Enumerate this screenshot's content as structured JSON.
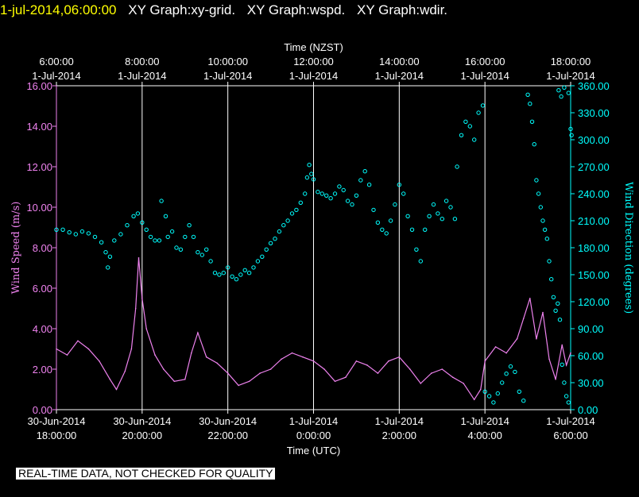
{
  "header": {
    "timestamp": "1-jul-2014,06:00:00",
    "titles": [
      "XY Graph:xy-grid.",
      "XY Graph:wspd.",
      "XY Graph:wdir."
    ]
  },
  "footer": {
    "note": "REAL-TIME DATA, NOT CHECKED FOR QUALITY"
  },
  "chart_data": {
    "type": "scatter",
    "title_top": "Time (NZST)",
    "title_bottom": "Time (UTC)",
    "ylabel_left": "Wind Speed (m/s)",
    "ylabel_right": "Wind Direction (degrees)",
    "x_range_hours_utc": [
      18,
      30
    ],
    "gridlines_x_hours": [
      20,
      22,
      24,
      26,
      28
    ],
    "top_ticks": [
      {
        "h": 18,
        "l1": "6:00:00",
        "l2": "1-Jul-2014"
      },
      {
        "h": 20,
        "l1": "8:00:00",
        "l2": "1-Jul-2014"
      },
      {
        "h": 22,
        "l1": "10:00:00",
        "l2": "1-Jul-2014"
      },
      {
        "h": 24,
        "l1": "12:00:00",
        "l2": "1-Jul-2014"
      },
      {
        "h": 26,
        "l1": "14:00:00",
        "l2": "1-Jul-2014"
      },
      {
        "h": 28,
        "l1": "16:00:00",
        "l2": "1-Jul-2014"
      },
      {
        "h": 30,
        "l1": "18:00:00",
        "l2": "1-Jul-2014"
      }
    ],
    "bottom_ticks": [
      {
        "h": 18,
        "l1": "30-Jun-2014",
        "l2": "18:00:00"
      },
      {
        "h": 20,
        "l1": "30-Jun-2014",
        "l2": "20:00:00"
      },
      {
        "h": 22,
        "l1": "30-Jun-2014",
        "l2": "22:00:00"
      },
      {
        "h": 24,
        "l1": "1-Jul-2014",
        "l2": "0:00:00"
      },
      {
        "h": 26,
        "l1": "1-Jul-2014",
        "l2": "2:00:00"
      },
      {
        "h": 28,
        "l1": "1-Jul-2014",
        "l2": "4:00:00"
      },
      {
        "h": 30,
        "l1": "1-Jul-2014",
        "l2": "6:00:00"
      }
    ],
    "left_axis": {
      "range": [
        0,
        16
      ],
      "ticks": [
        "0.00",
        "2.00",
        "4.00",
        "6.00",
        "8.00",
        "10.00",
        "12.00",
        "14.00",
        "16.00"
      ]
    },
    "right_axis": {
      "range": [
        0,
        360
      ],
      "ticks": [
        "0.00",
        "30.00",
        "60.00",
        "90.00",
        "120.00",
        "150.00",
        "180.00",
        "210.00",
        "240.00",
        "270.00",
        "300.00",
        "330.00",
        "360.00"
      ]
    },
    "series": [
      {
        "name": "Wind Speed",
        "kind": "line",
        "axis": "left",
        "color": "#ee82ee",
        "points": [
          [
            18.0,
            3.0
          ],
          [
            18.25,
            2.7
          ],
          [
            18.5,
            3.4
          ],
          [
            18.75,
            3.0
          ],
          [
            19.0,
            2.4
          ],
          [
            19.25,
            1.5
          ],
          [
            19.4,
            1.0
          ],
          [
            19.6,
            1.9
          ],
          [
            19.75,
            3.0
          ],
          [
            19.85,
            5.0
          ],
          [
            19.92,
            7.5
          ],
          [
            20.0,
            5.5
          ],
          [
            20.1,
            4.0
          ],
          [
            20.3,
            2.7
          ],
          [
            20.5,
            2.0
          ],
          [
            20.75,
            1.4
          ],
          [
            21.0,
            1.5
          ],
          [
            21.15,
            2.8
          ],
          [
            21.3,
            3.8
          ],
          [
            21.5,
            2.6
          ],
          [
            21.75,
            2.3
          ],
          [
            22.0,
            1.8
          ],
          [
            22.25,
            1.2
          ],
          [
            22.5,
            1.4
          ],
          [
            22.75,
            1.8
          ],
          [
            23.0,
            2.0
          ],
          [
            23.25,
            2.5
          ],
          [
            23.5,
            2.8
          ],
          [
            23.75,
            2.6
          ],
          [
            24.0,
            2.4
          ],
          [
            24.25,
            2.0
          ],
          [
            24.5,
            1.4
          ],
          [
            24.75,
            1.6
          ],
          [
            25.0,
            2.4
          ],
          [
            25.25,
            2.2
          ],
          [
            25.5,
            1.8
          ],
          [
            25.75,
            2.4
          ],
          [
            26.0,
            2.6
          ],
          [
            26.25,
            2.0
          ],
          [
            26.5,
            1.3
          ],
          [
            26.75,
            1.8
          ],
          [
            27.0,
            2.0
          ],
          [
            27.25,
            1.6
          ],
          [
            27.5,
            1.3
          ],
          [
            27.75,
            0.5
          ],
          [
            27.9,
            1.0
          ],
          [
            28.0,
            2.4
          ],
          [
            28.25,
            3.1
          ],
          [
            28.5,
            2.8
          ],
          [
            28.75,
            3.5
          ],
          [
            28.9,
            4.5
          ],
          [
            29.05,
            5.5
          ],
          [
            29.2,
            3.5
          ],
          [
            29.35,
            4.8
          ],
          [
            29.5,
            2.5
          ],
          [
            29.65,
            1.5
          ],
          [
            29.8,
            3.2
          ],
          [
            29.9,
            2.2
          ],
          [
            30.0,
            2.8
          ]
        ]
      },
      {
        "name": "Wind Direction",
        "kind": "scatter",
        "axis": "right",
        "color": "#00ffff",
        "points": [
          [
            18.0,
            200
          ],
          [
            18.15,
            200
          ],
          [
            18.3,
            197
          ],
          [
            18.45,
            195
          ],
          [
            18.6,
            198
          ],
          [
            18.75,
            196
          ],
          [
            18.9,
            192
          ],
          [
            19.05,
            186
          ],
          [
            19.15,
            175
          ],
          [
            19.2,
            158
          ],
          [
            19.25,
            170
          ],
          [
            19.35,
            188
          ],
          [
            19.5,
            195
          ],
          [
            19.65,
            205
          ],
          [
            19.8,
            215
          ],
          [
            19.9,
            218
          ],
          [
            20.0,
            208
          ],
          [
            20.1,
            200
          ],
          [
            20.2,
            192
          ],
          [
            20.3,
            188
          ],
          [
            20.4,
            188
          ],
          [
            20.45,
            232
          ],
          [
            20.55,
            215
          ],
          [
            20.6,
            192
          ],
          [
            20.7,
            198
          ],
          [
            20.8,
            180
          ],
          [
            20.9,
            178
          ],
          [
            21.0,
            192
          ],
          [
            21.1,
            205
          ],
          [
            21.2,
            192
          ],
          [
            21.3,
            175
          ],
          [
            21.4,
            172
          ],
          [
            21.5,
            178
          ],
          [
            21.6,
            165
          ],
          [
            21.7,
            152
          ],
          [
            21.8,
            150
          ],
          [
            21.9,
            152
          ],
          [
            22.0,
            158
          ],
          [
            22.1,
            148
          ],
          [
            22.2,
            145
          ],
          [
            22.3,
            150
          ],
          [
            22.4,
            155
          ],
          [
            22.5,
            152
          ],
          [
            22.6,
            158
          ],
          [
            22.7,
            165
          ],
          [
            22.8,
            170
          ],
          [
            22.9,
            178
          ],
          [
            23.0,
            185
          ],
          [
            23.1,
            190
          ],
          [
            23.2,
            198
          ],
          [
            23.3,
            205
          ],
          [
            23.4,
            210
          ],
          [
            23.5,
            218
          ],
          [
            23.6,
            222
          ],
          [
            23.7,
            230
          ],
          [
            23.8,
            240
          ],
          [
            23.85,
            258
          ],
          [
            23.9,
            272
          ],
          [
            23.95,
            262
          ],
          [
            24.0,
            256
          ],
          [
            24.1,
            242
          ],
          [
            24.2,
            240
          ],
          [
            24.3,
            238
          ],
          [
            24.4,
            235
          ],
          [
            24.5,
            240
          ],
          [
            24.6,
            248
          ],
          [
            24.7,
            244
          ],
          [
            24.8,
            232
          ],
          [
            24.9,
            228
          ],
          [
            25.0,
            238
          ],
          [
            25.1,
            255
          ],
          [
            25.2,
            265
          ],
          [
            25.3,
            250
          ],
          [
            25.4,
            222
          ],
          [
            25.5,
            208
          ],
          [
            25.6,
            200
          ],
          [
            25.7,
            196
          ],
          [
            25.8,
            210
          ],
          [
            25.9,
            228
          ],
          [
            26.0,
            250
          ],
          [
            26.1,
            240
          ],
          [
            26.2,
            215
          ],
          [
            26.3,
            200
          ],
          [
            26.4,
            178
          ],
          [
            26.5,
            165
          ],
          [
            26.6,
            200
          ],
          [
            26.7,
            215
          ],
          [
            26.8,
            228
          ],
          [
            26.9,
            218
          ],
          [
            27.0,
            212
          ],
          [
            27.1,
            232
          ],
          [
            27.2,
            225
          ],
          [
            27.3,
            212
          ],
          [
            27.35,
            270
          ],
          [
            27.45,
            305
          ],
          [
            27.55,
            320
          ],
          [
            27.65,
            315
          ],
          [
            27.75,
            300
          ],
          [
            27.85,
            330
          ],
          [
            27.95,
            338
          ],
          [
            28.0,
            20
          ],
          [
            28.1,
            15
          ],
          [
            28.2,
            8
          ],
          [
            28.3,
            18
          ],
          [
            28.4,
            30
          ],
          [
            28.5,
            40
          ],
          [
            28.6,
            48
          ],
          [
            28.7,
            42
          ],
          [
            28.8,
            20
          ],
          [
            28.9,
            10
          ],
          [
            29.0,
            350
          ],
          [
            29.05,
            340
          ],
          [
            29.1,
            320
          ],
          [
            29.15,
            295
          ],
          [
            29.2,
            255
          ],
          [
            29.25,
            240
          ],
          [
            29.3,
            225
          ],
          [
            29.35,
            210
          ],
          [
            29.4,
            200
          ],
          [
            29.45,
            190
          ],
          [
            29.5,
            165
          ],
          [
            29.55,
            145
          ],
          [
            29.6,
            125
          ],
          [
            29.65,
            110
          ],
          [
            29.7,
            118
          ],
          [
            29.75,
            100
          ],
          [
            29.8,
            50
          ],
          [
            29.85,
            30
          ],
          [
            29.9,
            15
          ],
          [
            29.95,
            8
          ],
          [
            29.72,
            355
          ],
          [
            29.78,
            348
          ],
          [
            29.85,
            358
          ],
          [
            29.95,
            352
          ],
          [
            30.0,
            312
          ],
          [
            30.02,
            305
          ]
        ]
      }
    ]
  }
}
